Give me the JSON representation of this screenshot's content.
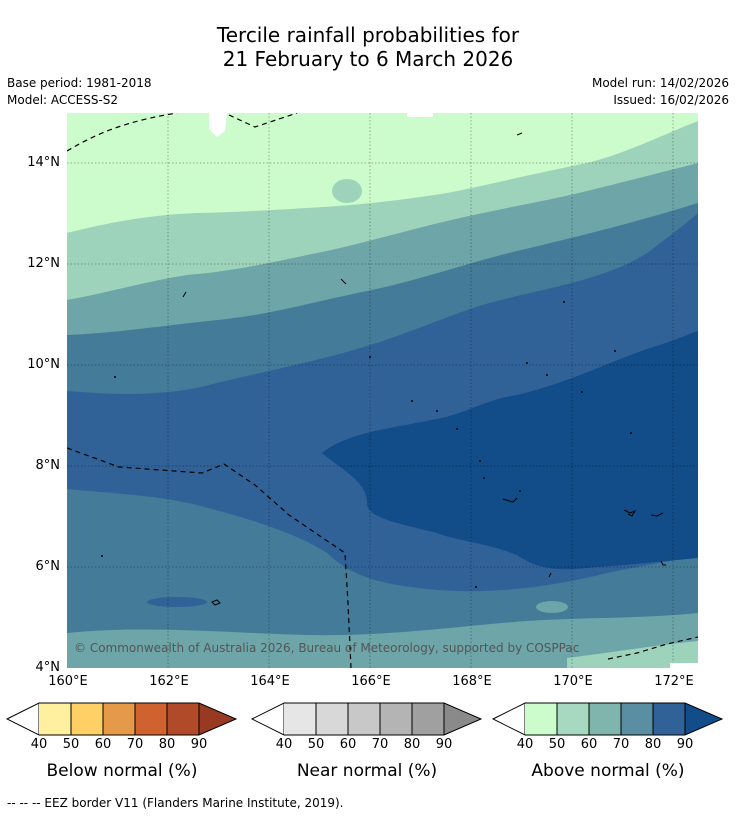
{
  "title": {
    "line1": "Tercile rainfall probabilities for",
    "line2": "21 February to 6 March 2026"
  },
  "meta": {
    "base_period": "Base period: 1981-2018",
    "model": "Model: ACCESS-S2",
    "model_run": "Model run: 14/02/2026",
    "issued": "Issued: 16/02/2026"
  },
  "map": {
    "lat_labels": [
      "14°N",
      "12°N",
      "10°N",
      "8°N",
      "6°N",
      "4°N"
    ],
    "lon_labels": [
      "160°E",
      "162°E",
      "164°E",
      "166°E",
      "168°E",
      "170°E",
      "172°E"
    ],
    "copyright": "© Commonwealth of Australia 2026, Bureau of Meteorology, supported by COSPPac",
    "colors": {
      "a40": "#ccfccc",
      "a50": "#9ed3bb",
      "a60": "#6ea5a8",
      "a70": "#437b99",
      "a80": "#306298",
      "a90": "#124c89"
    }
  },
  "colorbars": [
    {
      "title": "Below normal (%)",
      "ticks": [
        "40",
        "50",
        "60",
        "70",
        "80",
        "90"
      ],
      "colors": [
        "#ffffff",
        "#fff0a0",
        "#ffd066",
        "#e59a4a",
        "#d0622f",
        "#b04a29",
        "#983a22"
      ]
    },
    {
      "title": "Near normal (%)",
      "ticks": [
        "40",
        "50",
        "60",
        "70",
        "80",
        "90"
      ],
      "colors": [
        "#ffffff",
        "#e6e6e6",
        "#d8d8d8",
        "#c8c8c8",
        "#b4b4b4",
        "#a0a0a0",
        "#8a8a8a"
      ]
    },
    {
      "title": "Above normal (%)",
      "ticks": [
        "40",
        "50",
        "60",
        "70",
        "80",
        "90"
      ],
      "colors": [
        "#ffffff",
        "#ccfccc",
        "#a6d9c0",
        "#80b5ad",
        "#5a8fa3",
        "#306298",
        "#124c89"
      ]
    }
  ],
  "footnote": "--  --  -- EEZ border V11 (Flanders Marine Institute, 2019)."
}
